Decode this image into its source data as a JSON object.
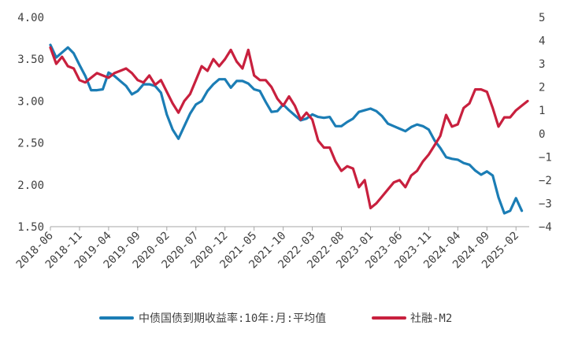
{
  "chart_data": {
    "type": "line",
    "title": "",
    "x_tick_labels": [
      "2018-06",
      "2018-11",
      "2019-04",
      "2019-09",
      "2020-02",
      "2020-07",
      "2020-12",
      "2021-05",
      "2021-10",
      "2022-03",
      "2022-08",
      "2023-01",
      "2023-06",
      "2023-11",
      "2024-04",
      "2024-09",
      "2025-02"
    ],
    "y_left": {
      "ticks": [
        "4.00",
        "3.50",
        "3.00",
        "2.50",
        "2.00",
        "1.50"
      ],
      "ylim": [
        1.5,
        4.0
      ]
    },
    "y_right": {
      "ticks": [
        "5",
        "4",
        "3",
        "2",
        "1",
        "0",
        "−1",
        "−2",
        "−3",
        "−4"
      ],
      "ylim": [
        -4,
        5
      ]
    },
    "grid": false,
    "legend_position": "bottom",
    "series": [
      {
        "name": "中债国债到期收益率:10年:月:平均值",
        "axis": "left",
        "color": "#1B7DB5",
        "values": [
          3.67,
          3.52,
          3.58,
          3.64,
          3.57,
          3.43,
          3.3,
          3.13,
          3.13,
          3.14,
          3.34,
          3.3,
          3.24,
          3.18,
          3.08,
          3.12,
          3.2,
          3.2,
          3.18,
          3.1,
          2.84,
          2.66,
          2.55,
          2.7,
          2.85,
          2.96,
          3.0,
          3.12,
          3.2,
          3.26,
          3.26,
          3.16,
          3.24,
          3.24,
          3.21,
          3.14,
          3.12,
          2.99,
          2.87,
          2.88,
          2.96,
          2.89,
          2.83,
          2.77,
          2.79,
          2.84,
          2.81,
          2.8,
          2.81,
          2.7,
          2.7,
          2.75,
          2.79,
          2.87,
          2.89,
          2.91,
          2.88,
          2.82,
          2.73,
          2.7,
          2.67,
          2.64,
          2.69,
          2.72,
          2.7,
          2.66,
          2.53,
          2.44,
          2.33,
          2.31,
          2.3,
          2.26,
          2.24,
          2.17,
          2.12,
          2.16,
          2.11,
          1.85,
          1.66,
          1.69,
          1.84,
          1.69
        ]
      },
      {
        "name": "社融-M2",
        "axis": "right",
        "color": "#C8203E",
        "values": [
          3.7,
          3.0,
          3.3,
          2.9,
          2.8,
          2.3,
          2.2,
          2.4,
          2.6,
          2.5,
          2.4,
          2.6,
          2.7,
          2.8,
          2.6,
          2.3,
          2.2,
          2.5,
          2.1,
          2.3,
          1.8,
          1.3,
          0.9,
          1.4,
          1.7,
          2.3,
          2.9,
          2.7,
          3.2,
          2.9,
          3.2,
          3.6,
          3.1,
          2.8,
          3.6,
          2.5,
          2.3,
          2.3,
          2.0,
          1.5,
          1.2,
          1.6,
          1.2,
          0.6,
          0.9,
          0.6,
          -0.3,
          -0.6,
          -0.6,
          -1.2,
          -1.6,
          -1.4,
          -1.5,
          -2.3,
          -2.0,
          -3.2,
          -3.0,
          -2.7,
          -2.4,
          -2.1,
          -2.0,
          -2.3,
          -1.8,
          -1.6,
          -1.2,
          -0.9,
          -0.5,
          -0.1,
          0.8,
          0.3,
          0.4,
          1.1,
          1.3,
          1.9,
          1.9,
          1.8,
          1.1,
          0.3,
          0.7,
          0.7,
          1.0,
          1.2,
          1.4
        ]
      }
    ]
  }
}
